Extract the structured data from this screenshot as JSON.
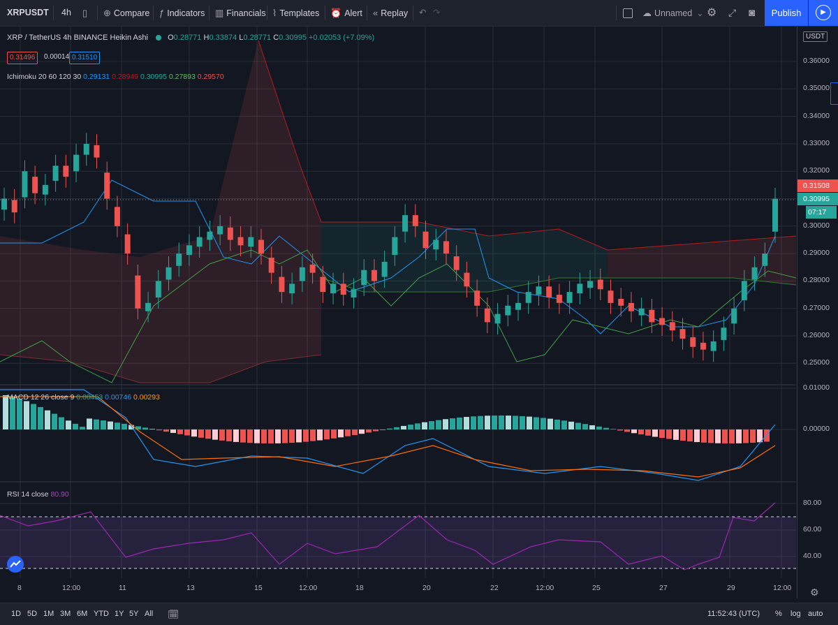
{
  "toolbar": {
    "symbol": "XRPUSDT",
    "interval": "4h",
    "compare": "Compare",
    "indicators": "Indicators",
    "financials": "Financials",
    "templates": "Templates",
    "alert": "Alert",
    "replay": "Replay",
    "layout_name": "Unnamed",
    "publish": "Publish"
  },
  "legend": {
    "symbol_line": "XRP / TetherUS  4h  BINANCE  Heikin Ashi",
    "o_label": "O",
    "o": "0.28771",
    "h_label": "H",
    "h": "0.33874",
    "l_label": "L",
    "l": "0.28771",
    "c_label": "C",
    "c": "0.30995",
    "change": "+0.02053 (+7.09%)",
    "bid": "0.31496",
    "spread": "0.00014",
    "ask": "0.31510",
    "ichimoku_label": "Ichimoku 20 60 120 30",
    "ichimoku_v1": "0.29131",
    "ichimoku_v2": "0.28949",
    "ichimoku_v3": "0.30995",
    "ichimoku_v4": "0.27893",
    "ichimoku_v5": "0.29570",
    "macd_label": "MACD 12 26 close 9",
    "macd_v1": "0.00453",
    "macd_v2": "0.00746",
    "macd_v3": "0.00293",
    "rsi_label": "RSI 14 close",
    "rsi_v": "80.90"
  },
  "price_axis": {
    "currency": "USDT",
    "labels": [
      "0.36000",
      "0.35000",
      "0.34000",
      "0.33000",
      "0.32000",
      "0.31000",
      "0.30000",
      "0.29000",
      "0.28000",
      "0.27000",
      "0.26000",
      "0.25000"
    ],
    "badge_red": "0.31508",
    "badge_green": "0.30995",
    "countdown": "07:17",
    "macd_labels": [
      "0.01000",
      "0.00000"
    ],
    "rsi_labels": [
      "80.00",
      "60.00",
      "40.00"
    ]
  },
  "time_axis": [
    "8",
    "12:00",
    "11",
    "13",
    "15",
    "12:00",
    "18",
    "20",
    "22",
    "12:00",
    "25",
    "27",
    "29",
    "12:00"
  ],
  "bottom": {
    "ranges": [
      "1D",
      "5D",
      "1M",
      "3M",
      "6M",
      "YTD",
      "1Y",
      "5Y",
      "All"
    ],
    "clock": "11:52:43 (UTC)",
    "percent": "%",
    "log": "log",
    "auto": "auto"
  },
  "colors": {
    "up": "#26a69a",
    "down": "#ef5350",
    "ichimoku_conversion": "#2196f3",
    "ichimoku_base": "#b71c1c",
    "lagging": "#43a047",
    "macd": "#2196f3",
    "signal": "#ff6d00",
    "rsi": "#9c27b0"
  },
  "chart_data": {
    "type": "candlestick",
    "title": "XRP / TetherUS 4h BINANCE Heikin Ashi",
    "ylim": [
      0.245,
      0.365
    ],
    "closes": [
      0.31,
      0.305,
      0.32,
      0.312,
      0.315,
      0.322,
      0.318,
      0.326,
      0.33,
      0.325,
      0.31,
      0.3,
      0.29,
      0.27,
      0.272,
      0.28,
      0.285,
      0.29,
      0.293,
      0.296,
      0.298,
      0.3,
      0.295,
      0.293,
      0.296,
      0.29,
      0.283,
      0.276,
      0.279,
      0.285,
      0.283,
      0.276,
      0.279,
      0.275,
      0.277,
      0.284,
      0.28,
      0.287,
      0.296,
      0.304,
      0.3,
      0.292,
      0.295,
      0.29,
      0.284,
      0.278,
      0.271,
      0.265,
      0.268,
      0.271,
      0.272,
      0.276,
      0.278,
      0.274,
      0.272,
      0.276,
      0.279,
      0.28,
      0.277,
      0.272,
      0.271,
      0.269,
      0.27,
      0.265,
      0.264,
      0.262,
      0.259,
      0.256,
      0.255,
      0.258,
      0.263,
      0.27,
      0.28,
      0.285,
      0.29,
      0.30995
    ]
  }
}
